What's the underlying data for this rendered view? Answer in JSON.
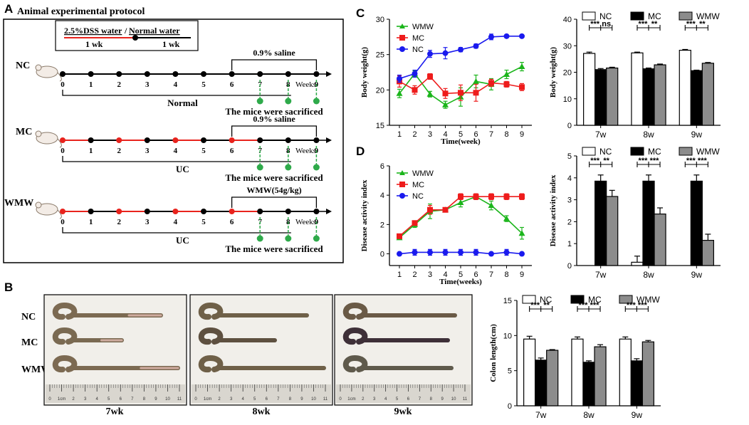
{
  "panels": {
    "a": "A",
    "b": "B",
    "c": "C",
    "d": "D"
  },
  "protocol": {
    "title": "Animal experimental protocol",
    "legend_dss": "2.5%DSS water",
    "legend_sep": "/",
    "legend_normal": "Normal water",
    "legend_wk_left": "1 wk",
    "legend_wk_right": "1 wk",
    "weeks_label": "Weeks",
    "week_ticks": [
      "0",
      "1",
      "2",
      "3",
      "4",
      "5",
      "6",
      "7",
      "8",
      "9"
    ],
    "sacrificed": "The mice were sacrificed",
    "groups": [
      {
        "name": "NC",
        "treatment": "0.9% saline",
        "condition": "Normal",
        "dss_weeks": [],
        "treat_start": 6
      },
      {
        "name": "MC",
        "treatment": "0.9% saline",
        "condition": "UC",
        "dss_weeks": [
          0,
          2,
          4,
          6
        ],
        "treat_start": 6
      },
      {
        "name": "WMW",
        "treatment": "WMW(54g/kg)",
        "condition": "UC",
        "dss_weeks": [
          0,
          2,
          4,
          6
        ],
        "treat_start": 6
      }
    ],
    "colors": {
      "dss": "#e8231d",
      "normal": "#000000",
      "sac": "#2eaa4a"
    }
  },
  "photos": {
    "row_labels": [
      "NC",
      "MC",
      "WMW"
    ],
    "captions": [
      "7wk",
      "8wk",
      "9wk"
    ],
    "ruler_ticks": [
      "0",
      "1cm",
      "2",
      "3",
      "4",
      "5",
      "6",
      "7",
      "8",
      "9",
      "10",
      "11"
    ]
  },
  "chart_data": [
    {
      "id": "c_line",
      "type": "line",
      "ylabel": "Body weight(g)",
      "xlabel": "Time(week)",
      "x": [
        1,
        2,
        3,
        4,
        5,
        6,
        7,
        8,
        9
      ],
      "xticks": [
        "1",
        "2",
        "3",
        "4",
        "5",
        "6",
        "7",
        "8",
        "9"
      ],
      "ylim": [
        15,
        30
      ],
      "yticks": [
        "15",
        "20",
        "25",
        "30"
      ],
      "series": [
        {
          "name": "WMW",
          "color": "#1bb51b",
          "marker": "triangle",
          "values": [
            19.5,
            22.3,
            19.4,
            17.9,
            19.0,
            21.2,
            20.8,
            22.2,
            23.3
          ],
          "err": [
            0.6,
            0.4,
            0.4,
            0.5,
            1.3,
            0.9,
            0.8,
            0.6,
            0.6
          ]
        },
        {
          "name": "MC",
          "color": "#ee1c1c",
          "marker": "square",
          "values": [
            21.2,
            20.0,
            21.9,
            19.5,
            19.6,
            19.6,
            21.0,
            20.8,
            20.4
          ],
          "err": [
            0.8,
            0.6,
            0.4,
            0.7,
            1.1,
            1.2,
            0.5,
            0.4,
            0.5
          ]
        },
        {
          "name": "NC",
          "color": "#1a1aee",
          "marker": "circle",
          "values": [
            21.6,
            22.3,
            25.1,
            25.2,
            25.7,
            26.2,
            27.5,
            27.6,
            27.6
          ],
          "err": [
            0.5,
            0.5,
            0.5,
            0.8,
            0.3,
            0.3,
            0.4,
            0.2,
            0.2
          ]
        }
      ]
    },
    {
      "id": "c_bar",
      "type": "bar",
      "ylabel": "Body weight(g)",
      "categories": [
        "7w",
        "8w",
        "9w"
      ],
      "ylim": [
        0,
        40
      ],
      "yticks": [
        "0",
        "10",
        "20",
        "30",
        "40"
      ],
      "series": [
        {
          "name": "NC",
          "color": "#ffffff",
          "values": [
            27.1,
            27.3,
            28.3
          ],
          "err": [
            0.5,
            0.3,
            0.3
          ]
        },
        {
          "name": "MC",
          "color": "#000000",
          "values": [
            21.0,
            21.3,
            20.6
          ],
          "err": [
            0.4,
            0.3,
            0.2
          ]
        },
        {
          "name": "WMW",
          "color": "#8c8c8c",
          "values": [
            21.6,
            22.8,
            23.4
          ],
          "err": [
            0.3,
            0.3,
            0.3
          ]
        }
      ],
      "sig": [
        {
          "group": 0,
          "left": "***",
          "right": "ns"
        },
        {
          "group": 1,
          "left": "***",
          "right": "**"
        },
        {
          "group": 2,
          "left": "***",
          "right": "**"
        }
      ]
    },
    {
      "id": "d_line",
      "type": "line",
      "ylabel": "Disease activity index",
      "xlabel": "Time(weeks)",
      "x": [
        1,
        2,
        3,
        4,
        5,
        6,
        7,
        8,
        9
      ],
      "xticks": [
        "1",
        "2",
        "3",
        "4",
        "5",
        "6",
        "7",
        "8",
        "9"
      ],
      "ylim": [
        -0.8,
        6
      ],
      "yticks": [
        "0",
        "2",
        "4",
        "6"
      ],
      "ytick_values": [
        0,
        2,
        4,
        6
      ],
      "series": [
        {
          "name": "WMW",
          "color": "#1bb51b",
          "marker": "triangle",
          "values": [
            1.1,
            2.0,
            2.9,
            3.0,
            3.5,
            3.9,
            3.3,
            2.4,
            1.4
          ],
          "err": [
            0.1,
            0.2,
            0.5,
            0.1,
            0.3,
            0.2,
            0.3,
            0.2,
            0.4
          ]
        },
        {
          "name": "MC",
          "color": "#ee1c1c",
          "marker": "square",
          "values": [
            1.2,
            2.1,
            3.0,
            3.0,
            3.9,
            3.9,
            3.9,
            3.9,
            3.9
          ],
          "err": [
            0.1,
            0.1,
            0.3,
            0.1,
            0.2,
            0.2,
            0.2,
            0.2,
            0.2
          ]
        },
        {
          "name": "NC",
          "color": "#1a1aee",
          "marker": "circle",
          "values": [
            0.0,
            0.1,
            0.1,
            0.1,
            0.1,
            0.1,
            0.0,
            0.1,
            0.0
          ],
          "err": [
            0.0,
            0.2,
            0.2,
            0.2,
            0.2,
            0.2,
            0.0,
            0.2,
            0.0
          ]
        }
      ]
    },
    {
      "id": "d_bar",
      "type": "bar",
      "ylabel": "Disease activity index",
      "categories": [
        "7w",
        "8w",
        "9w"
      ],
      "ylim": [
        0,
        5
      ],
      "yticks": [
        "0",
        "1",
        "2",
        "3",
        "4",
        "5"
      ],
      "series": [
        {
          "name": "NC",
          "color": "#ffffff",
          "values": [
            0.0,
            0.15,
            0.0
          ],
          "err": [
            0.0,
            0.28,
            0.0
          ]
        },
        {
          "name": "MC",
          "color": "#000000",
          "values": [
            3.85,
            3.85,
            3.85
          ],
          "err": [
            0.28,
            0.28,
            0.28
          ]
        },
        {
          "name": "WMW",
          "color": "#8c8c8c",
          "values": [
            3.15,
            2.35,
            1.15
          ],
          "err": [
            0.28,
            0.28,
            0.28
          ]
        }
      ],
      "sig": [
        {
          "group": 0,
          "left": "***",
          "right": "**"
        },
        {
          "group": 1,
          "left": "***",
          "right": "***"
        },
        {
          "group": 2,
          "left": "***",
          "right": "***"
        }
      ]
    },
    {
      "id": "b_bar",
      "type": "bar",
      "ylabel": "Colon length(cm)",
      "categories": [
        "7w",
        "8w",
        "9w"
      ],
      "ylim": [
        0,
        15
      ],
      "yticks": [
        "0",
        "5",
        "10",
        "15"
      ],
      "series": [
        {
          "name": "NC",
          "color": "#ffffff",
          "values": [
            9.5,
            9.5,
            9.5
          ],
          "err": [
            0.4,
            0.3,
            0.3
          ]
        },
        {
          "name": "MC",
          "color": "#000000",
          "values": [
            6.5,
            6.2,
            6.4
          ],
          "err": [
            0.3,
            0.2,
            0.3
          ]
        },
        {
          "name": "WMW",
          "color": "#8c8c8c",
          "values": [
            7.9,
            8.4,
            9.1
          ],
          "err": [
            0.1,
            0.3,
            0.2
          ]
        }
      ],
      "sig": [
        {
          "group": 0,
          "left": "***",
          "right": "**"
        },
        {
          "group": 1,
          "left": "***",
          "right": "***"
        },
        {
          "group": 2,
          "left": "***",
          "right": "***"
        }
      ]
    }
  ]
}
